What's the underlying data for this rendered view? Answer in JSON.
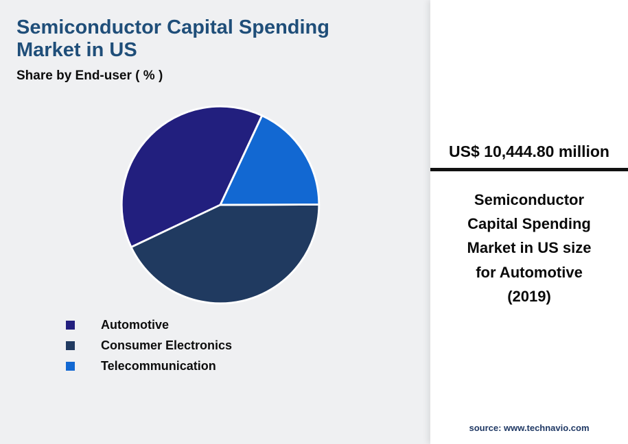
{
  "header": {
    "title": "Semiconductor Capital Spending Market in US",
    "subtitle": "Share by End-user ( % )"
  },
  "chart_data": {
    "type": "pie",
    "title": "Semiconductor Capital Spending Market in US",
    "subtitle": "Share by End-user ( % )",
    "unit": "%",
    "start_angle_deg": 65,
    "direction": "counterclockwise",
    "legend_position": "bottom-left",
    "categories": [
      "Automotive",
      "Consumer Electronics",
      "Telecommunication"
    ],
    "values": [
      39,
      43,
      18
    ],
    "segments": [
      {
        "label": "Automotive",
        "value": 39,
        "color": "#221f7e"
      },
      {
        "label": "Consumer Electronics",
        "value": 43,
        "color": "#203a60"
      },
      {
        "label": "Telecommunication",
        "value": 18,
        "color": "#1268d2"
      }
    ]
  },
  "panel": {
    "stat_value": "US$ 10,444.80 million",
    "description": "Semiconductor Capital Spending Market in US size for Automotive (2019)",
    "source": "source: www.technavio.com"
  },
  "colors": {
    "title": "#1f4e79",
    "background": "#eff0f2",
    "panel_background": "#ffffff",
    "rule": "#111111",
    "slice_border": "#ffffff"
  }
}
